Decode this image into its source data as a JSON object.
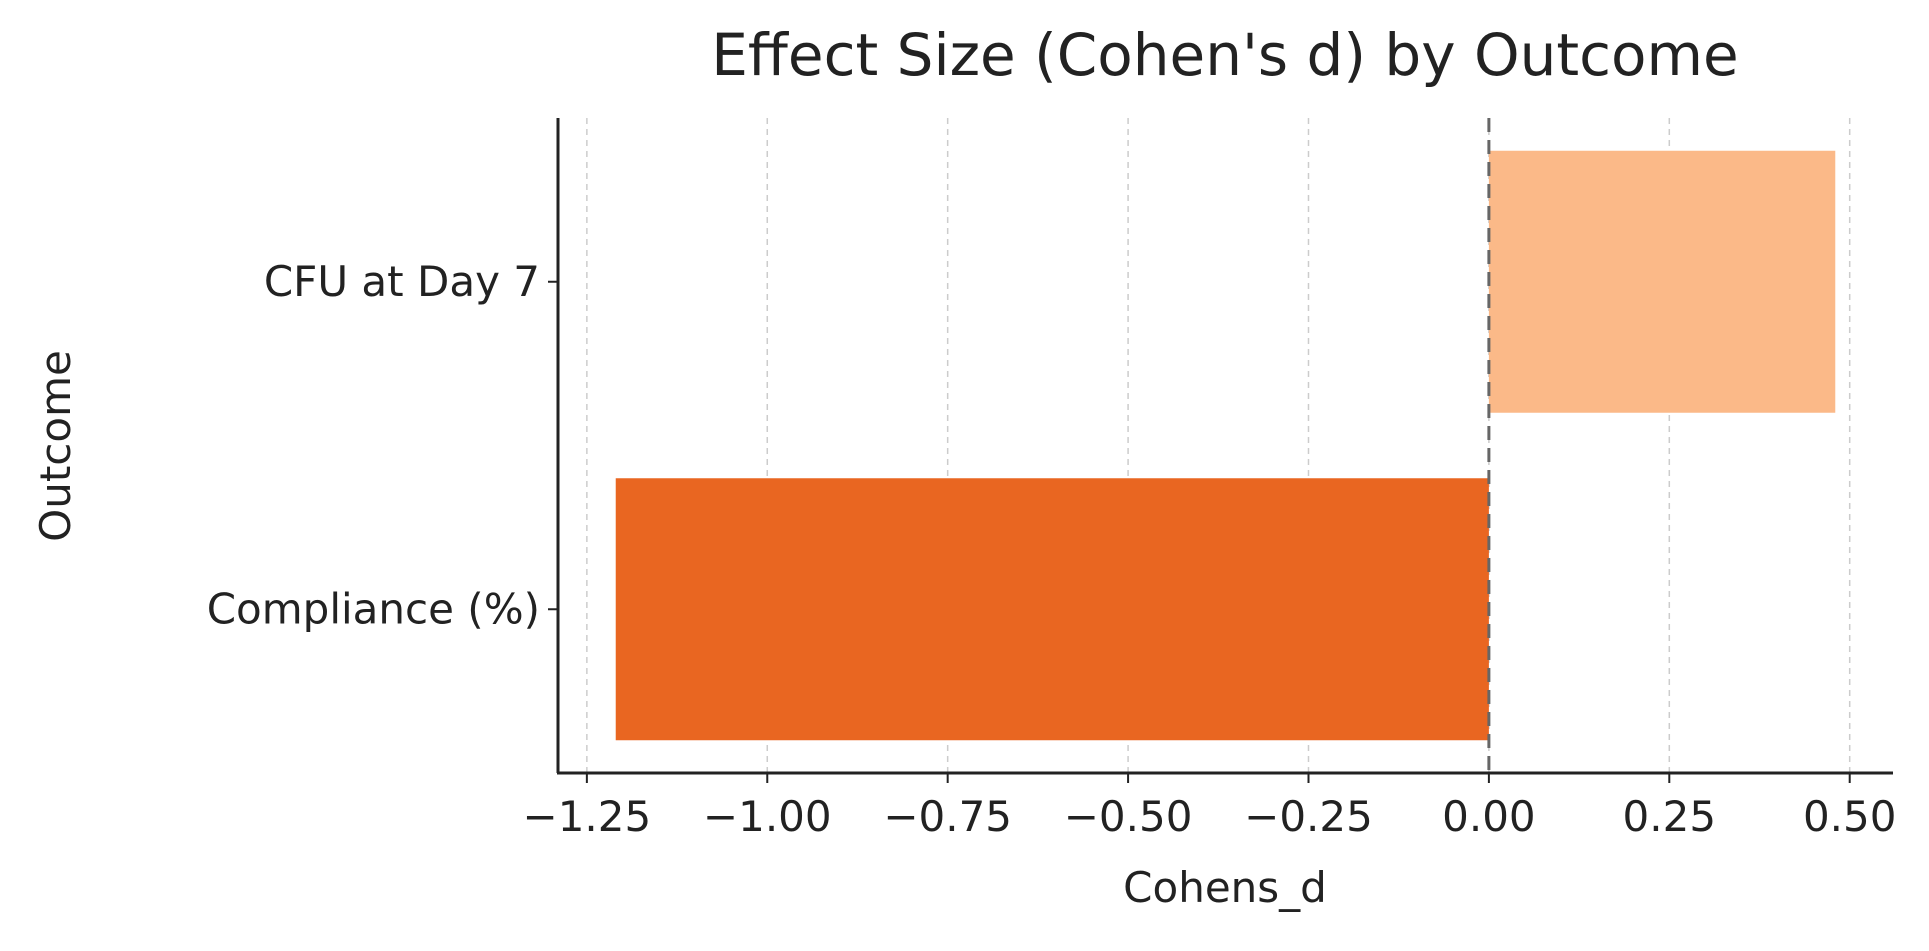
{
  "chart_data": {
    "type": "bar",
    "orientation": "horizontal",
    "title": "Effect Size (Cohen's d) by Outcome",
    "xlabel": "Cohens_d",
    "ylabel": "Outcome",
    "categories": [
      "CFU at Day 7",
      "Compliance (%)"
    ],
    "values": [
      0.48,
      -1.21
    ],
    "bar_colors": [
      "#fbb988",
      "#e96621"
    ],
    "xlim": [
      -1.29,
      0.56
    ],
    "xticks": [
      -1.25,
      -1.0,
      -0.75,
      -0.5,
      -0.25,
      0.0,
      0.25,
      0.5
    ],
    "xtick_labels": [
      "−1.25",
      "−1.00",
      "−0.75",
      "−0.50",
      "−0.25",
      "0.00",
      "0.25",
      "0.50"
    ],
    "grid": "vertical, dashed",
    "reference_line": 0
  }
}
